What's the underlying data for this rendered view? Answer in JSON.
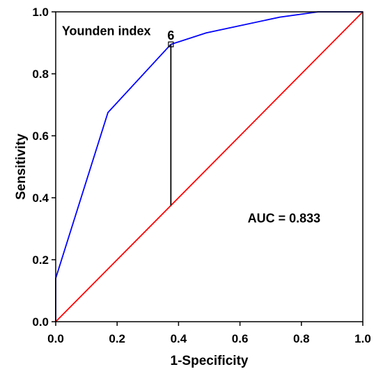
{
  "chart_data": {
    "type": "line",
    "xlabel": "1-Specificity",
    "ylabel": "Sensitivity",
    "xlim": [
      0,
      1
    ],
    "ylim": [
      0,
      1
    ],
    "xticks": [
      "0.0",
      "0.2",
      "0.4",
      "0.6",
      "0.8",
      "1.0"
    ],
    "yticks": [
      "0.0",
      "0.2",
      "0.4",
      "0.6",
      "0.8",
      "1.0"
    ],
    "grid": false,
    "series": [
      {
        "color": "#0000ff",
        "points": [
          [
            0,
            0
          ],
          [
            0,
            0.14
          ],
          [
            0.17,
            0.675
          ],
          [
            0.375,
            0.895
          ],
          [
            0.49,
            0.932
          ],
          [
            0.73,
            0.983
          ],
          [
            0.855,
            1.0
          ],
          [
            1.0,
            1.0
          ]
        ]
      },
      {
        "color": "#ff0000",
        "points": [
          [
            0,
            0
          ],
          [
            1,
            1
          ]
        ]
      }
    ],
    "younden": {
      "label": "Younden index",
      "cutoff_label": "6",
      "x": 0.375,
      "y_top": 0.895,
      "y_bottom": 0.375,
      "color": "#000000"
    },
    "auc_text": "AUC = 0.833"
  }
}
